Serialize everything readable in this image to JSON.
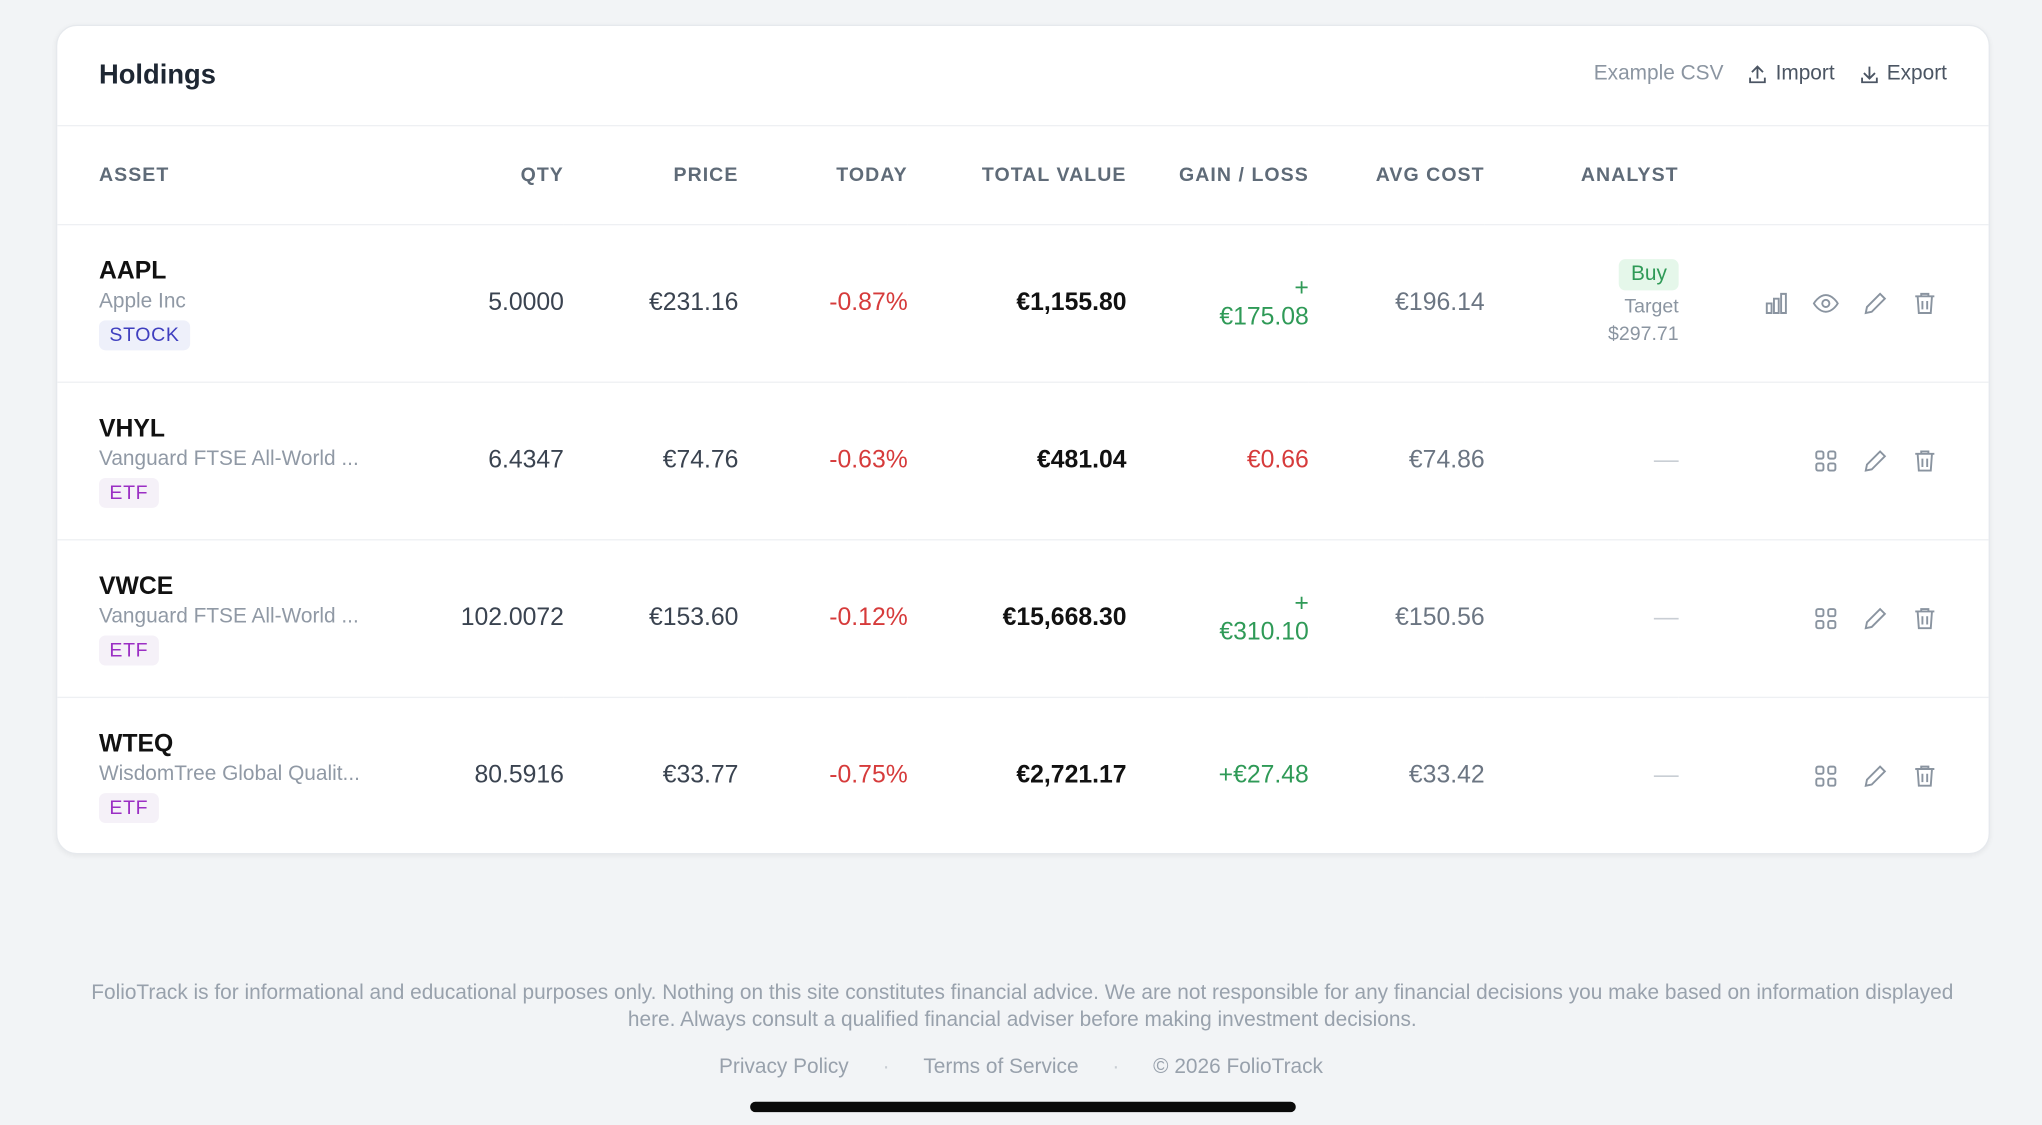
{
  "header": {
    "title": "Holdings",
    "actions": [
      "Example CSV",
      "Import",
      "Export"
    ]
  },
  "table": {
    "columns": [
      "ASSET",
      "QTY",
      "PRICE",
      "TODAY",
      "TOTAL VALUE",
      "GAIN / LOSS",
      "AVG COST",
      "ANALYST"
    ],
    "rows": [
      {
        "symbol": "AAPL",
        "name": "Apple Inc",
        "type": "STOCK",
        "type_color": "#3f3fbf",
        "type_bg": "#eef0fa",
        "qty": "5.0000",
        "price": "€231.16",
        "today": "-0.87%",
        "today_color": "#d63b3b",
        "total": "€1,155.80",
        "gain": "+ €175.08",
        "gain_color": "#2f9a57",
        "avg_cost": "€196.14",
        "analyst": {
          "rating": "Buy",
          "target_label": "Target",
          "target": "$297.71"
        }
      },
      {
        "symbol": "VHYL",
        "name": "Vanguard FTSE All-World ...",
        "type": "ETF",
        "type_color": "#9b2fc4",
        "type_bg": "#f5f1f8",
        "qty": "6.4347",
        "price": "€74.76",
        "today": "-0.63%",
        "today_color": "#d63b3b",
        "total": "€481.04",
        "gain": "€0.66",
        "gain_color": "#d63b3b",
        "avg_cost": "€74.86",
        "analyst": {
          "placeholder": "—"
        }
      },
      {
        "symbol": "VWCE",
        "name": "Vanguard FTSE All-World ...",
        "type": "ETF",
        "type_color": "#9b2fc4",
        "type_bg": "#f5f1f8",
        "qty": "102.0072",
        "price": "€153.60",
        "today": "-0.12%",
        "today_color": "#d63b3b",
        "total": "€15,668.30",
        "gain": "+ €310.10",
        "gain_color": "#2f9a57",
        "avg_cost": "€150.56",
        "analyst": {
          "placeholder": "—"
        }
      },
      {
        "symbol": "WTEQ",
        "name": "WisdomTree Global Qualit...",
        "type": "ETF",
        "type_color": "#9b2fc4",
        "type_bg": "#f5f1f8",
        "qty": "80.5916",
        "price": "€33.77",
        "today": "-0.75%",
        "today_color": "#d63b3b",
        "total": "€2,721.17",
        "gain": "+€27.48",
        "gain_color": "#2f9a57",
        "avg_cost": "€33.42",
        "analyst": {
          "placeholder": "—"
        }
      }
    ]
  },
  "footer": {
    "disclaimer": "FolioTrack is for informational and educational purposes only. Nothing on this site constitutes financial advice. We are not responsible for any financial decisions you make based on information displayed here. Always consult a qualified financial adviser before making investment decisions.",
    "links": [
      "Privacy Policy",
      "Terms of Service",
      "© 2026 FolioTrack"
    ]
  }
}
